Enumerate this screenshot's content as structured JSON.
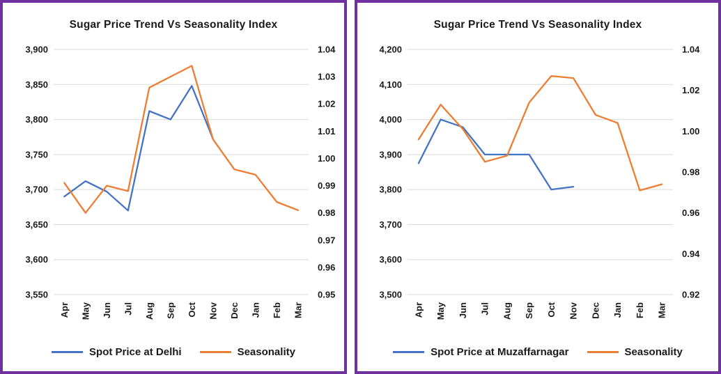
{
  "colors": {
    "panel_border": "#7030A0",
    "gridline": "#D9D9D9",
    "text": "#1a1a1a",
    "series_blue": "#4472C4",
    "series_orange": "#ED7D31"
  },
  "chart_data": [
    {
      "type": "line",
      "title": "Sugar Price Trend Vs Seasonality Index",
      "grid": true,
      "legend_position": "bottom",
      "categories": [
        "Apr",
        "May",
        "Jun",
        "Jul",
        "Aug",
        "Sep",
        "Oct",
        "Nov",
        "Dec",
        "Jan",
        "Feb",
        "Mar"
      ],
      "left_axis": {
        "min": 3550,
        "max": 3900,
        "step": 50,
        "ticks": [
          "3,900",
          "3,850",
          "3,800",
          "3,750",
          "3,700",
          "3,650",
          "3,600",
          "3,550"
        ]
      },
      "right_axis": {
        "min": 0.95,
        "max": 1.04,
        "step": 0.01,
        "ticks": [
          "1.04",
          "1.03",
          "1.02",
          "1.01",
          "1.00",
          "0.99",
          "0.98",
          "0.97",
          "0.96",
          "0.95"
        ]
      },
      "series": [
        {
          "name": "Spot Price at Delhi",
          "axis": "left",
          "color": "#4472C4",
          "values": [
            3690,
            3712,
            3697,
            3670,
            3812,
            3800,
            3848,
            3772,
            null,
            null,
            null,
            null
          ]
        },
        {
          "name": "Seasonality",
          "axis": "right",
          "color": "#ED7D31",
          "values": [
            0.991,
            0.98,
            0.99,
            0.988,
            1.026,
            1.03,
            1.034,
            1.007,
            0.996,
            0.994,
            0.984,
            0.981
          ]
        }
      ]
    },
    {
      "type": "line",
      "title": "Sugar Price Trend Vs Seasonality Index",
      "grid": true,
      "legend_position": "bottom",
      "categories": [
        "Apr",
        "May",
        "Jun",
        "Jul",
        "Aug",
        "Sep",
        "Oct",
        "Nov",
        "Dec",
        "Jan",
        "Feb",
        "Mar"
      ],
      "left_axis": {
        "min": 3500,
        "max": 4200,
        "step": 100,
        "ticks": [
          "4,200",
          "4,100",
          "4,000",
          "3,900",
          "3,800",
          "3,700",
          "3,600",
          "3,500"
        ]
      },
      "right_axis": {
        "min": 0.92,
        "max": 1.04,
        "step": 0.02,
        "ticks": [
          "1.04",
          "1.02",
          "1.00",
          "0.98",
          "0.96",
          "0.94",
          "0.92"
        ]
      },
      "series": [
        {
          "name": "Spot Price at Muzaffarnagar",
          "axis": "left",
          "color": "#4472C4",
          "values": [
            3875,
            4000,
            3978,
            3900,
            3900,
            3900,
            3800,
            3808,
            null,
            null,
            null,
            null
          ]
        },
        {
          "name": "Seasonality",
          "axis": "right",
          "color": "#ED7D31",
          "values": [
            0.996,
            1.013,
            1.001,
            0.985,
            0.988,
            1.014,
            1.027,
            1.026,
            1.008,
            1.004,
            0.971,
            0.974
          ]
        }
      ]
    }
  ]
}
